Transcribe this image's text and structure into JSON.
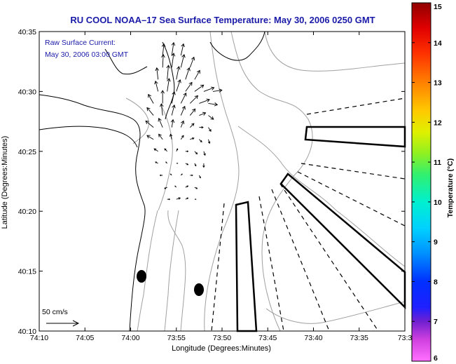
{
  "chart_data": {
    "type": "map",
    "title": "RU COOL  NOAA–17  Sea Surface Temperature:  May 30, 2006 0250 GMT",
    "xlabel": "Longitude (Degrees:Minutes)",
    "ylabel": "Latitude (Degrees:Minutes)",
    "x_ticks": [
      "74:10",
      "74:05",
      "74:00",
      "73:55",
      "73:50",
      "73:45",
      "73:40",
      "73:35",
      "73:3"
    ],
    "y_ticks": [
      "40:10",
      "40:15",
      "40:20",
      "40:25",
      "40:30",
      "40:35"
    ],
    "xlim_minutes_west": [
      4450,
      4410
    ],
    "ylim_minutes_north": [
      2410,
      2435
    ],
    "legend": {
      "line1": "Raw Surface Current:",
      "line2": "May 30, 2006 03:00 GMT"
    },
    "scale_label": "50 cm/s",
    "colorbar": {
      "label": "Temperature (°C)",
      "ticks": [
        "6",
        "7",
        "8",
        "9",
        "10",
        "11",
        "12",
        "13",
        "14",
        "15"
      ],
      "range": [
        6,
        15
      ]
    },
    "current_vectors": [
      {
        "lon": 4436.5,
        "lat": 2433.0,
        "u": 2,
        "v": 18
      },
      {
        "lon": 4435.5,
        "lat": 2433.0,
        "u": 3,
        "v": 20
      },
      {
        "lon": 4434.5,
        "lat": 2433.0,
        "u": 4,
        "v": 18
      },
      {
        "lon": 4436.5,
        "lat": 2432.0,
        "u": 1,
        "v": 20
      },
      {
        "lon": 4435.5,
        "lat": 2432.0,
        "u": 3,
        "v": 22
      },
      {
        "lon": 4434.5,
        "lat": 2432.0,
        "u": 5,
        "v": 20
      },
      {
        "lon": 4433.5,
        "lat": 2432.0,
        "u": 6,
        "v": 16
      },
      {
        "lon": 4437.0,
        "lat": 2431.0,
        "u": -2,
        "v": 18
      },
      {
        "lon": 4436.0,
        "lat": 2431.0,
        "u": 2,
        "v": 22
      },
      {
        "lon": 4435.0,
        "lat": 2431.0,
        "u": 4,
        "v": 20
      },
      {
        "lon": 4434.0,
        "lat": 2431.0,
        "u": 6,
        "v": 18
      },
      {
        "lon": 4433.0,
        "lat": 2431.0,
        "u": 8,
        "v": 14
      },
      {
        "lon": 4437.0,
        "lat": 2430.0,
        "u": -4,
        "v": 16
      },
      {
        "lon": 4436.0,
        "lat": 2430.0,
        "u": 3,
        "v": 20
      },
      {
        "lon": 4435.0,
        "lat": 2430.0,
        "u": 6,
        "v": 18
      },
      {
        "lon": 4434.0,
        "lat": 2430.0,
        "u": 10,
        "v": 14
      },
      {
        "lon": 4433.0,
        "lat": 2430.0,
        "u": 14,
        "v": 10
      },
      {
        "lon": 4432.0,
        "lat": 2430.0,
        "u": 16,
        "v": 6
      },
      {
        "lon": 4431.0,
        "lat": 2430.0,
        "u": 14,
        "v": 2
      },
      {
        "lon": 4437.5,
        "lat": 2429.0,
        "u": -8,
        "v": 14
      },
      {
        "lon": 4436.5,
        "lat": 2429.0,
        "u": 0,
        "v": 20
      },
      {
        "lon": 4435.5,
        "lat": 2429.0,
        "u": 4,
        "v": 18
      },
      {
        "lon": 4434.5,
        "lat": 2429.0,
        "u": 8,
        "v": 16
      },
      {
        "lon": 4433.5,
        "lat": 2429.0,
        "u": 12,
        "v": 12
      },
      {
        "lon": 4432.5,
        "lat": 2429.0,
        "u": 16,
        "v": 6
      },
      {
        "lon": 4431.5,
        "lat": 2429.0,
        "u": 14,
        "v": -2
      },
      {
        "lon": 4437.5,
        "lat": 2428.0,
        "u": -10,
        "v": 12
      },
      {
        "lon": 4436.5,
        "lat": 2428.0,
        "u": -2,
        "v": 18
      },
      {
        "lon": 4435.5,
        "lat": 2428.0,
        "u": 4,
        "v": 16
      },
      {
        "lon": 4434.5,
        "lat": 2428.0,
        "u": 6,
        "v": 14
      },
      {
        "lon": 4433.5,
        "lat": 2428.0,
        "u": 8,
        "v": 10
      },
      {
        "lon": 4432.5,
        "lat": 2428.0,
        "u": 10,
        "v": 4
      },
      {
        "lon": 4431.5,
        "lat": 2428.0,
        "u": 8,
        "v": -6
      },
      {
        "lon": 4437.5,
        "lat": 2427.0,
        "u": -12,
        "v": 10
      },
      {
        "lon": 4436.5,
        "lat": 2427.0,
        "u": -6,
        "v": 14
      },
      {
        "lon": 4435.5,
        "lat": 2427.0,
        "u": 2,
        "v": 12
      },
      {
        "lon": 4434.5,
        "lat": 2427.0,
        "u": 4,
        "v": 10
      },
      {
        "lon": 4433.5,
        "lat": 2427.0,
        "u": 6,
        "v": 6
      },
      {
        "lon": 4432.5,
        "lat": 2427.0,
        "u": 6,
        "v": 0
      },
      {
        "lon": 4431.5,
        "lat": 2427.0,
        "u": 4,
        "v": -6
      },
      {
        "lon": 4437.5,
        "lat": 2426.0,
        "u": -10,
        "v": 6
      },
      {
        "lon": 4436.5,
        "lat": 2426.0,
        "u": -6,
        "v": 8
      },
      {
        "lon": 4435.5,
        "lat": 2426.0,
        "u": -2,
        "v": 8
      },
      {
        "lon": 4434.5,
        "lat": 2426.0,
        "u": 4,
        "v": 6
      },
      {
        "lon": 4433.5,
        "lat": 2426.0,
        "u": 6,
        "v": 2
      },
      {
        "lon": 4432.5,
        "lat": 2426.0,
        "u": 4,
        "v": -4
      },
      {
        "lon": 4431.5,
        "lat": 2426.0,
        "u": 2,
        "v": -6
      },
      {
        "lon": 4437.0,
        "lat": 2425.0,
        "u": -6,
        "v": 4
      },
      {
        "lon": 4436.0,
        "lat": 2425.0,
        "u": -4,
        "v": 4
      },
      {
        "lon": 4435.0,
        "lat": 2425.0,
        "u": 2,
        "v": 4
      },
      {
        "lon": 4434.0,
        "lat": 2425.0,
        "u": 4,
        "v": 0
      },
      {
        "lon": 4433.0,
        "lat": 2425.0,
        "u": 4,
        "v": -4
      },
      {
        "lon": 4432.0,
        "lat": 2425.0,
        "u": 2,
        "v": -6
      },
      {
        "lon": 4437.0,
        "lat": 2424.0,
        "u": -4,
        "v": 2
      },
      {
        "lon": 4436.0,
        "lat": 2424.0,
        "u": -2,
        "v": 2
      },
      {
        "lon": 4435.0,
        "lat": 2424.0,
        "u": 2,
        "v": 0
      },
      {
        "lon": 4434.0,
        "lat": 2424.0,
        "u": 4,
        "v": -2
      },
      {
        "lon": 4433.0,
        "lat": 2424.0,
        "u": 2,
        "v": -4
      },
      {
        "lon": 4432.0,
        "lat": 2424.0,
        "u": 0,
        "v": -6
      },
      {
        "lon": 4436.5,
        "lat": 2423.0,
        "u": -4,
        "v": 0
      },
      {
        "lon": 4435.5,
        "lat": 2423.0,
        "u": -2,
        "v": 2
      },
      {
        "lon": 4434.5,
        "lat": 2423.0,
        "u": 2,
        "v": 2
      },
      {
        "lon": 4433.5,
        "lat": 2423.0,
        "u": 4,
        "v": 0
      },
      {
        "lon": 4432.5,
        "lat": 2423.0,
        "u": 2,
        "v": -4
      },
      {
        "lon": 4436.0,
        "lat": 2422.0,
        "u": -4,
        "v": -2
      },
      {
        "lon": 4435.0,
        "lat": 2422.0,
        "u": -2,
        "v": 2
      },
      {
        "lon": 4434.0,
        "lat": 2422.0,
        "u": 4,
        "v": 2
      },
      {
        "lon": 4433.0,
        "lat": 2422.0,
        "u": 4,
        "v": -2
      },
      {
        "lon": 4436.0,
        "lat": 2421.0,
        "u": 4,
        "v": 0
      },
      {
        "lon": 4435.0,
        "lat": 2421.0,
        "u": 6,
        "v": 2
      },
      {
        "lon": 4434.0,
        "lat": 2421.0,
        "u": 4,
        "v": 2
      },
      {
        "lon": 4433.0,
        "lat": 2421.0,
        "u": 2,
        "v": 0
      }
    ]
  }
}
